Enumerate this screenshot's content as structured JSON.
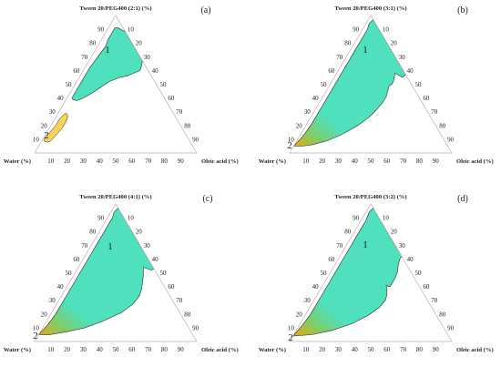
{
  "figure": {
    "colors": {
      "region1": "#4fe0bd",
      "region1_stroke": "#2a7a66",
      "region2_yellow": "#f5d25a",
      "region2_green": "#7ccf6a",
      "region2_gold": "#d4b020",
      "outline": "#2a2a2a",
      "axis": "#b3b3b3"
    },
    "axes": {
      "left_label": "Water (%)",
      "right_label": "Oleic acid (%)",
      "ticks": [
        "10",
        "20",
        "30",
        "40",
        "50",
        "60",
        "70",
        "80",
        "90"
      ]
    },
    "region_labels": {
      "region1": "1",
      "region2": "2"
    },
    "panels": [
      {
        "title": "Tween 20/PEG400 (2:1) (%)",
        "label": "(a)",
        "region1_bcp": [
          [
            40,
            57,
            3
          ],
          [
            52,
            45,
            3
          ],
          [
            62,
            35,
            3
          ],
          [
            70,
            26,
            4
          ],
          [
            77,
            18,
            5
          ],
          [
            83,
            13,
            4
          ],
          [
            88,
            8,
            4
          ],
          [
            91,
            5,
            4
          ],
          [
            91,
            3,
            6
          ],
          [
            88,
            0,
            12
          ],
          [
            85,
            0,
            15
          ],
          [
            80,
            0,
            20
          ],
          [
            75,
            0,
            25
          ],
          [
            71,
            0,
            29
          ],
          [
            68,
            0,
            32
          ],
          [
            67,
            0,
            33
          ],
          [
            64,
            2,
            34
          ],
          [
            60,
            5,
            35
          ],
          [
            58,
            10,
            32
          ],
          [
            56,
            15,
            29
          ],
          [
            55,
            20,
            25
          ],
          [
            52,
            28,
            20
          ],
          [
            48,
            35,
            17
          ],
          [
            44,
            42,
            14
          ],
          [
            40,
            50,
            10
          ],
          [
            38,
            55,
            7
          ],
          [
            39,
            57,
            4
          ]
        ],
        "region2_bcp": [
          [
            9,
            90,
            1
          ],
          [
            12,
            87,
            1
          ],
          [
            16,
            82,
            2
          ],
          [
            20,
            77,
            3
          ],
          [
            25,
            72,
            3
          ],
          [
            28,
            68,
            4
          ],
          [
            29,
            66,
            5
          ],
          [
            27,
            66,
            7
          ],
          [
            23,
            69,
            8
          ],
          [
            18,
            74,
            8
          ],
          [
            14,
            79,
            7
          ],
          [
            10,
            84,
            6
          ],
          [
            8,
            87,
            5
          ],
          [
            8,
            89,
            3
          ]
        ],
        "region2_gradient": false
      },
      {
        "title": "Tween 20/PEG400 (3:1) (%)",
        "label": "(b)",
        "region1_bcp": [
          [
            5,
            95,
            0
          ],
          [
            12,
            86,
            2
          ],
          [
            20,
            77,
            3
          ],
          [
            28,
            69,
            3
          ],
          [
            36,
            61,
            3
          ],
          [
            44,
            53,
            3
          ],
          [
            51,
            46,
            3
          ],
          [
            57,
            40,
            3
          ],
          [
            63,
            34,
            3
          ],
          [
            70,
            27,
            3
          ],
          [
            77,
            20,
            3
          ],
          [
            84,
            13,
            3
          ],
          [
            90,
            7,
            3
          ],
          [
            94,
            4,
            2
          ],
          [
            97,
            0,
            3
          ],
          [
            95,
            0,
            5
          ],
          [
            90,
            0,
            10
          ],
          [
            84,
            0,
            16
          ],
          [
            78,
            0,
            22
          ],
          [
            72,
            0,
            28
          ],
          [
            66,
            0,
            34
          ],
          [
            62,
            0,
            38
          ],
          [
            57,
            0,
            43
          ],
          [
            55,
            3,
            42
          ],
          [
            57,
            5,
            38
          ],
          [
            58,
            6,
            36
          ],
          [
            55,
            8,
            37
          ],
          [
            52,
            10,
            38
          ],
          [
            50,
            12,
            38
          ],
          [
            49,
            14,
            37
          ],
          [
            48,
            15,
            37
          ],
          [
            45,
            17,
            38
          ],
          [
            41,
            20,
            39
          ],
          [
            37,
            24,
            39
          ],
          [
            32,
            30,
            38
          ],
          [
            26,
            38,
            36
          ],
          [
            20,
            48,
            32
          ],
          [
            14,
            60,
            26
          ],
          [
            9,
            72,
            19
          ],
          [
            6,
            83,
            11
          ],
          [
            5,
            90,
            5
          ]
        ],
        "region2_gradient": true
      },
      {
        "title": "Tween 20/PEG400 (4:1) (%)",
        "label": "(c)",
        "region1_bcp": [
          [
            5,
            95,
            0
          ],
          [
            12,
            86,
            2
          ],
          [
            20,
            77,
            3
          ],
          [
            28,
            69,
            3
          ],
          [
            36,
            61,
            3
          ],
          [
            44,
            53,
            3
          ],
          [
            52,
            45,
            3
          ],
          [
            58,
            39,
            3
          ],
          [
            63,
            34,
            3
          ],
          [
            70,
            27,
            3
          ],
          [
            77,
            20,
            3
          ],
          [
            84,
            13,
            3
          ],
          [
            90,
            7,
            3
          ],
          [
            94,
            4,
            2
          ],
          [
            97,
            0,
            3
          ],
          [
            95,
            0,
            5
          ],
          [
            90,
            0,
            10
          ],
          [
            85,
            0,
            15
          ],
          [
            80,
            0,
            20
          ],
          [
            75,
            0,
            25
          ],
          [
            70,
            0,
            30
          ],
          [
            65,
            0,
            35
          ],
          [
            62,
            0,
            38
          ],
          [
            59,
            0,
            41
          ],
          [
            57,
            0,
            43
          ],
          [
            53,
            0,
            47
          ],
          [
            52,
            2,
            46
          ],
          [
            53,
            4,
            43
          ],
          [
            54,
            6,
            40
          ],
          [
            52,
            7,
            41
          ],
          [
            48,
            9,
            43
          ],
          [
            43,
            12,
            45
          ],
          [
            38,
            15,
            47
          ],
          [
            33,
            19,
            48
          ],
          [
            27,
            26,
            47
          ],
          [
            21,
            36,
            43
          ],
          [
            15,
            50,
            35
          ],
          [
            10,
            64,
            26
          ],
          [
            7,
            77,
            16
          ],
          [
            5,
            88,
            7
          ]
        ],
        "region2_gradient": true
      },
      {
        "title": "Tween 20/PEG400 (3:2) (%)",
        "label": "(d)",
        "region1_bcp": [
          [
            4,
            96,
            0
          ],
          [
            12,
            86,
            2
          ],
          [
            20,
            77,
            3
          ],
          [
            28,
            69,
            3
          ],
          [
            36,
            61,
            3
          ],
          [
            44,
            53,
            3
          ],
          [
            52,
            45,
            3
          ],
          [
            58,
            39,
            3
          ],
          [
            64,
            33,
            3
          ],
          [
            72,
            25,
            3
          ],
          [
            80,
            17,
            3
          ],
          [
            88,
            9,
            3
          ],
          [
            94,
            4,
            2
          ],
          [
            97,
            0,
            3
          ],
          [
            94,
            0,
            6
          ],
          [
            88,
            0,
            12
          ],
          [
            82,
            0,
            18
          ],
          [
            76,
            0,
            24
          ],
          [
            70,
            0,
            30
          ],
          [
            66,
            0,
            34
          ],
          [
            62,
            0,
            38
          ],
          [
            60,
            2,
            38
          ],
          [
            56,
            5,
            39
          ],
          [
            51,
            8,
            41
          ],
          [
            46,
            12,
            42
          ],
          [
            42,
            16,
            42
          ],
          [
            40,
            18,
            42
          ],
          [
            40,
            19,
            41
          ],
          [
            41,
            20,
            39
          ],
          [
            38,
            21,
            41
          ],
          [
            34,
            23,
            43
          ],
          [
            30,
            26,
            44
          ],
          [
            25,
            32,
            43
          ],
          [
            19,
            42,
            39
          ],
          [
            13,
            55,
            32
          ],
          [
            8,
            70,
            22
          ],
          [
            5,
            84,
            11
          ]
        ],
        "region2_gradient": true
      }
    ]
  }
}
